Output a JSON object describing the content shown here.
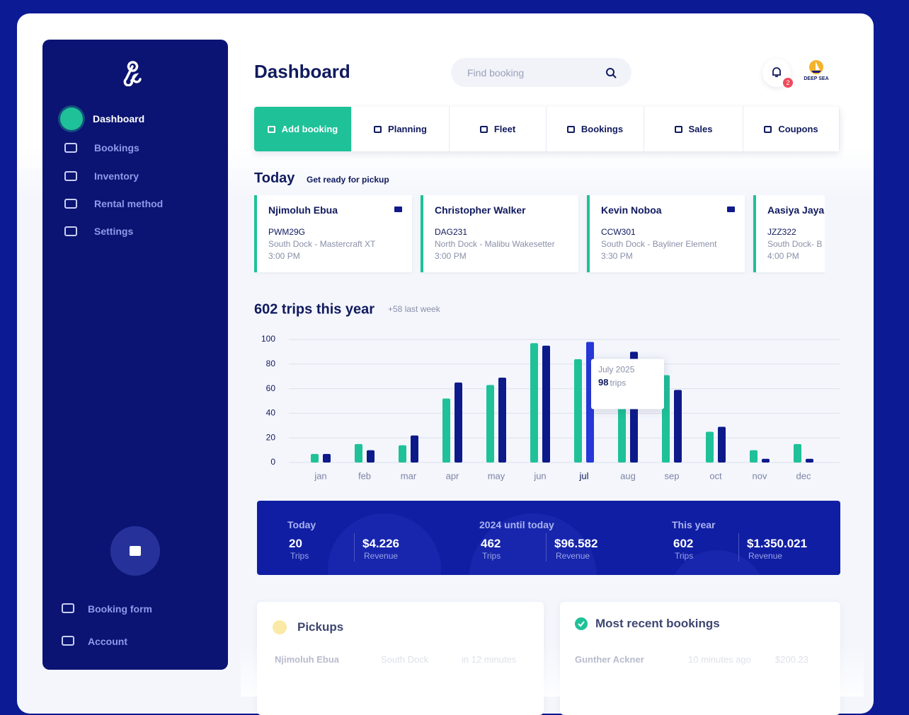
{
  "sidebar": {
    "nav": [
      "Dashboard",
      "Bookings",
      "Inventory",
      "Rental method",
      "Settings"
    ],
    "footer_nav": [
      "Booking form",
      "Account"
    ]
  },
  "header": {
    "title": "Dashboard",
    "search_placeholder": "Find booking",
    "notifications": "2",
    "logo": "DEEP SEA"
  },
  "tabs": [
    "Add booking",
    "Planning",
    "Fleet",
    "Bookings",
    "Sales",
    "Coupons"
  ],
  "today": {
    "title": "Today",
    "subtitle": "Get ready for pickup",
    "cards": [
      {
        "name": "Njimoluh Ebua",
        "code": "PWM29G",
        "location": "South Dock - Mastercraft XT",
        "time": "3:00 PM"
      },
      {
        "name": "Christopher Walker",
        "code": "DAG231",
        "location": "North Dock - Malibu Wakesetter",
        "time": "3:00 PM"
      },
      {
        "name": "Kevin Noboa",
        "code": "CCW301",
        "location": "South Dock - Bayliner Element",
        "time": "3:30 PM"
      },
      {
        "name": "Aasiya Jaya",
        "code": "JZZ322",
        "location": "South Dock- B",
        "time": "4:00 PM"
      }
    ]
  },
  "chart_data": {
    "type": "bar",
    "title": "602 trips this year",
    "subtitle": "+58 last week",
    "categories": [
      "jan",
      "feb",
      "mar",
      "apr",
      "may",
      "jun",
      "jul",
      "aug",
      "sep",
      "oct",
      "nov",
      "dec"
    ],
    "series": [
      {
        "color": "#1fc198",
        "values": [
          7,
          15,
          14,
          52,
          63,
          97,
          84,
          45,
          71,
          25,
          10,
          15
        ]
      },
      {
        "color": "#0d1a8a",
        "values": [
          7,
          10,
          22,
          65,
          69,
          95,
          98,
          90,
          59,
          29,
          3,
          3
        ]
      }
    ],
    "ylim": [
      0,
      100
    ],
    "yticks": [
      0,
      20,
      40,
      60,
      80,
      100
    ],
    "grid": true,
    "highlight_index": 6,
    "highlight_color": "#2638d8",
    "tooltip": {
      "title": "July 2025",
      "unit": "trips"
    }
  },
  "stats": [
    {
      "title": "Today",
      "items": [
        {
          "value": "20",
          "label": "Trips"
        },
        {
          "value": "$4.226",
          "label": "Revenue"
        }
      ]
    },
    {
      "title": "2024 until today",
      "items": [
        {
          "value": "462",
          "label": "Trips"
        },
        {
          "value": "$96.582",
          "label": "Revenue"
        }
      ]
    },
    {
      "title": "This year",
      "items": [
        {
          "value": "602",
          "label": "Trips"
        },
        {
          "value": "$1.350.021",
          "label": "Revenue"
        }
      ]
    }
  ],
  "pickups": {
    "title": "Pickups",
    "rows": [
      [
        "Njimoluh Ebua",
        "South Dock",
        "in 12 minutes"
      ]
    ]
  },
  "recent_bookings": {
    "title": "Most recent bookings",
    "rows": [
      [
        "Gunther Ackner",
        "10 minutes ago",
        "$200.23"
      ]
    ]
  }
}
